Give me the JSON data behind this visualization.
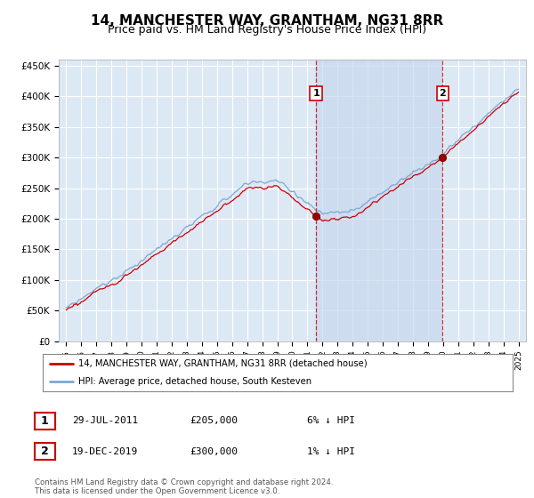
{
  "title": "14, MANCHESTER WAY, GRANTHAM, NG31 8RR",
  "subtitle": "Price paid vs. HM Land Registry's House Price Index (HPI)",
  "legend_line1": "14, MANCHESTER WAY, GRANTHAM, NG31 8RR (detached house)",
  "legend_line2": "HPI: Average price, detached house, South Kesteven",
  "footnote": "Contains HM Land Registry data © Crown copyright and database right 2024.\nThis data is licensed under the Open Government Licence v3.0.",
  "sale1_date": "29-JUL-2011",
  "sale1_price": "£205,000",
  "sale1_hpi": "6% ↓ HPI",
  "sale2_date": "19-DEC-2019",
  "sale2_price": "£300,000",
  "sale2_hpi": "1% ↓ HPI",
  "sale1_x": 2011.57,
  "sale1_y": 205000,
  "sale2_x": 2019.96,
  "sale2_y": 300000,
  "ylim": [
    0,
    460000
  ],
  "xlim": [
    1994.5,
    2025.5
  ],
  "background_color": "#dde8f5",
  "shade_color": "#c8d8ef",
  "grid_color": "#ffffff",
  "line_color_red": "#cc0000",
  "line_color_blue": "#7aa8d4",
  "title_fontsize": 11,
  "subtitle_fontsize": 9
}
